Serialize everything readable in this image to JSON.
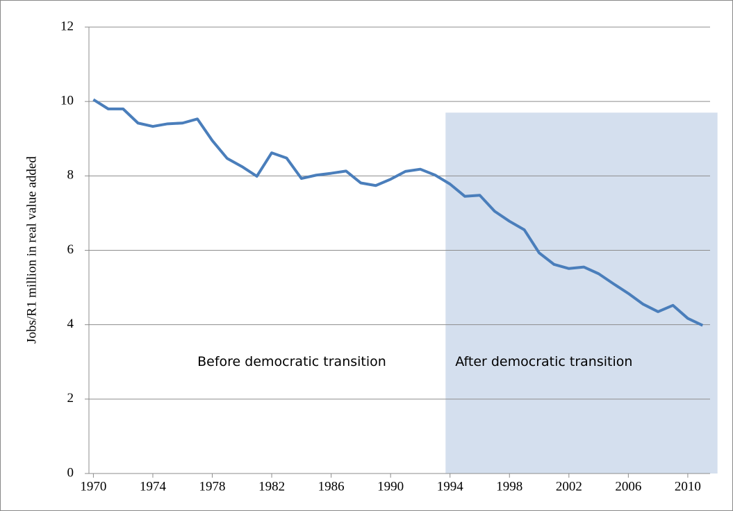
{
  "chart_data": {
    "type": "line",
    "ylabel": "Jobs/R1 million in real value added",
    "x": [
      1970,
      1971,
      1972,
      1973,
      1974,
      1975,
      1976,
      1977,
      1978,
      1979,
      1980,
      1981,
      1982,
      1983,
      1984,
      1985,
      1986,
      1987,
      1988,
      1989,
      1990,
      1991,
      1992,
      1993,
      1994,
      1995,
      1996,
      1997,
      1998,
      1999,
      2000,
      2001,
      2002,
      2003,
      2004,
      2005,
      2006,
      2007,
      2008,
      2009,
      2010,
      2011
    ],
    "values": [
      10.05,
      9.8,
      9.8,
      9.42,
      9.33,
      9.4,
      9.42,
      9.53,
      8.95,
      8.47,
      8.25,
      7.99,
      8.62,
      8.48,
      7.93,
      8.02,
      8.07,
      8.13,
      7.81,
      7.74,
      7.91,
      8.12,
      8.18,
      8.02,
      7.78,
      7.45,
      7.48,
      7.05,
      6.78,
      6.55,
      5.93,
      5.62,
      5.51,
      5.55,
      5.37,
      5.1,
      4.84,
      4.55,
      4.35,
      4.52,
      4.17,
      3.98
    ],
    "color": "#4a7ebb",
    "xlim": [
      1969.7,
      2011.5
    ],
    "xticks": [
      1970,
      1974,
      1978,
      1982,
      1986,
      1990,
      1994,
      1998,
      2002,
      2006,
      2010
    ],
    "ylim": [
      0,
      12
    ],
    "yticks": [
      0,
      2,
      4,
      6,
      8,
      10,
      12
    ],
    "grid": true,
    "shaded_span": {
      "x": [
        1993.7,
        2012
      ],
      "y": [
        0,
        9.7
      ],
      "color": "#d4dfee"
    },
    "annotations": [
      {
        "text": "Before democratic transition",
        "x": 1977.0,
        "y": 3
      },
      {
        "text": "After democratic transition",
        "x": 1994.35,
        "y": 3
      }
    ]
  }
}
